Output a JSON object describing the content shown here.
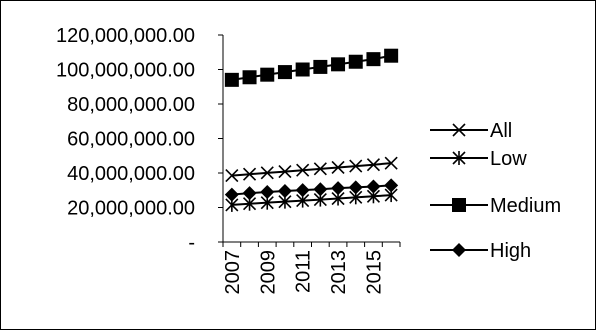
{
  "chart_data": {
    "type": "line",
    "x": [
      2007,
      2008,
      2009,
      2010,
      2011,
      2012,
      2013,
      2014,
      2015,
      2016
    ],
    "x_tick_labels": [
      "2007",
      "2009",
      "2011",
      "2013",
      "2015"
    ],
    "y_tick_labels": [
      "120,000,000.00",
      "100,000,000.00",
      "80,000,000.00",
      "60,000,000.00",
      "40,000,000.00",
      "20,000,000.00",
      "-"
    ],
    "ylim": [
      0,
      120000000
    ],
    "legend_position": "right",
    "grid": false,
    "series": [
      {
        "name": "All",
        "marker": "x",
        "color": "#000000",
        "values": [
          38500000,
          39300000,
          40100000,
          40800000,
          41600000,
          42400000,
          43200000,
          44000000,
          44800000,
          45700000
        ]
      },
      {
        "name": "Low",
        "marker": "asterisk",
        "color": "#000000",
        "values": [
          21500000,
          22200000,
          22800000,
          23400000,
          24000000,
          24600000,
          25200000,
          25900000,
          26500000,
          27200000
        ]
      },
      {
        "name": "Medium",
        "marker": "square",
        "color": "#000000",
        "values": [
          94000000,
          95500000,
          97000000,
          98500000,
          100000000,
          101500000,
          103000000,
          104500000,
          106000000,
          108000000
        ]
      },
      {
        "name": "High",
        "marker": "diamond",
        "color": "#000000",
        "values": [
          27500000,
          28300000,
          29000000,
          29600000,
          30100000,
          30600000,
          31200000,
          31700000,
          32200000,
          32800000
        ]
      }
    ]
  }
}
